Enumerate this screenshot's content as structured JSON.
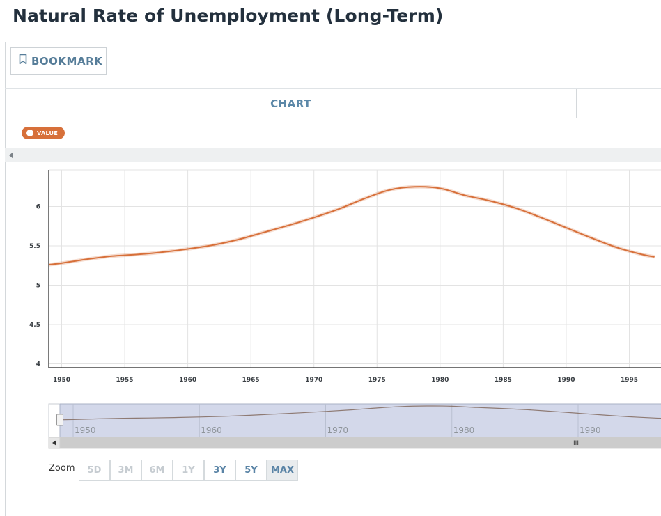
{
  "title": "Natural Rate of Unemployment (Long-Term)",
  "toolbar": {
    "bookmark_label": "BOOKMARK"
  },
  "tabs": {
    "chart_label": "CHART"
  },
  "legend": {
    "series_label": "VALUE",
    "color": "#d7703a"
  },
  "chart_data": {
    "type": "line",
    "title": "",
    "xlabel": "",
    "ylabel": "",
    "xlim": [
      1949,
      1997
    ],
    "ylim": [
      3.95,
      6.45
    ],
    "x_ticks": [
      1950,
      1955,
      1960,
      1965,
      1970,
      1975,
      1980,
      1985,
      1990,
      1995
    ],
    "y_ticks": [
      4,
      4.5,
      5,
      5.5,
      6
    ],
    "y_tick_labels": [
      "4",
      "4.5",
      "5",
      "5.5",
      "6"
    ],
    "grid": true,
    "series": [
      {
        "color": "#d7703a",
        "x": [
          1949,
          1950,
          1952,
          1954,
          1956,
          1958,
          1960,
          1962,
          1964,
          1966,
          1968,
          1970,
          1972,
          1974,
          1976,
          1978,
          1980,
          1982,
          1984,
          1986,
          1988,
          1990,
          1992,
          1994,
          1996,
          1997
        ],
        "values": [
          5.26,
          5.28,
          5.33,
          5.37,
          5.39,
          5.42,
          5.46,
          5.51,
          5.58,
          5.67,
          5.76,
          5.86,
          5.97,
          6.1,
          6.21,
          6.25,
          6.23,
          6.14,
          6.07,
          5.98,
          5.86,
          5.73,
          5.6,
          5.48,
          5.39,
          5.36
        ]
      }
    ]
  },
  "navigator": {
    "x_ticks": [
      1950,
      1960,
      1970,
      1980,
      1990
    ],
    "handle_glyph": "III"
  },
  "zoom": {
    "label": "Zoom",
    "buttons": [
      "5D",
      "3M",
      "6M",
      "1Y",
      "3Y",
      "5Y",
      "MAX"
    ]
  }
}
